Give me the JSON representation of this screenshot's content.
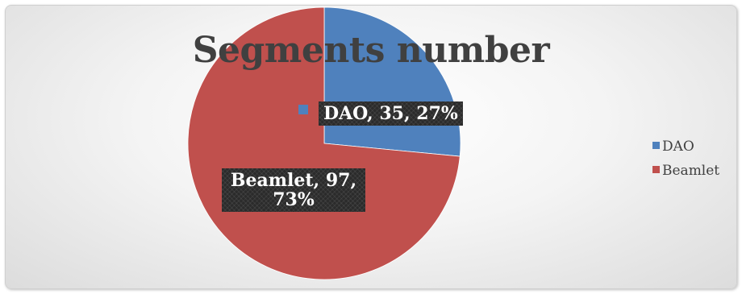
{
  "chart_data": {
    "type": "pie",
    "title": "Segments number",
    "categories": [
      "DAO",
      "Beamlet"
    ],
    "values": [
      35,
      97
    ],
    "percents": [
      "27%",
      "73%"
    ],
    "colors": [
      "#4f81bd",
      "#c0504d"
    ],
    "data_labels": [
      "DAO, 35, 27%",
      "Beamlet, 97, 73%"
    ],
    "legend_position": "right",
    "legend": [
      "DAO",
      "Beamlet"
    ]
  }
}
